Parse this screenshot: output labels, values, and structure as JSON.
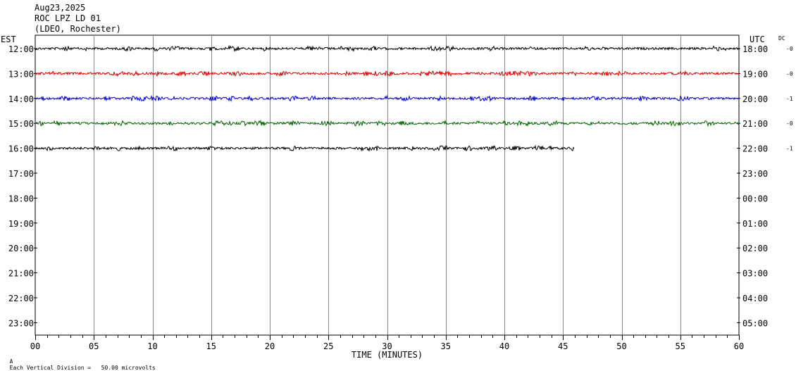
{
  "header": {
    "date": "Aug23,2025",
    "station": "ROC LPZ LD 01",
    "network": "(LDEO, Rochester)"
  },
  "footer": {
    "mark": "A",
    "scale_note": "Each Vertical Division =   50.00 microvolts"
  },
  "chart_data": {
    "type": "line",
    "title": "",
    "xlabel": "TIME (MINUTES)",
    "x_range": [
      0,
      60
    ],
    "x_ticks": [
      "00",
      "05",
      "10",
      "15",
      "20",
      "25",
      "30",
      "35",
      "40",
      "45",
      "50",
      "55",
      "60"
    ],
    "left_axis_label": "EST",
    "right_axis_label": "UTC",
    "dc_label": "DC",
    "rows_est": [
      "12:00",
      "13:00",
      "14:00",
      "15:00",
      "16:00",
      "17:00",
      "18:00",
      "19:00",
      "20:00",
      "21:00",
      "22:00",
      "23:00"
    ],
    "rows_utc": [
      "18:00",
      "19:00",
      "20:00",
      "21:00",
      "22:00",
      "23:00",
      "00:00",
      "01:00",
      "02:00",
      "03:00",
      "04:00",
      "05:00"
    ],
    "dc_offsets": [
      "-0",
      "-0",
      "-1",
      "-0",
      "-1"
    ],
    "traces": [
      {
        "row": "12:00",
        "color": "#000000",
        "x_end": 60
      },
      {
        "row": "13:00",
        "color": "#dd0000",
        "x_end": 60
      },
      {
        "row": "14:00",
        "color": "#0000cc",
        "x_end": 60
      },
      {
        "row": "15:00",
        "color": "#006400",
        "x_end": 60
      },
      {
        "row": "16:00",
        "color": "#000000",
        "x_end": 46
      }
    ],
    "grid": true
  }
}
